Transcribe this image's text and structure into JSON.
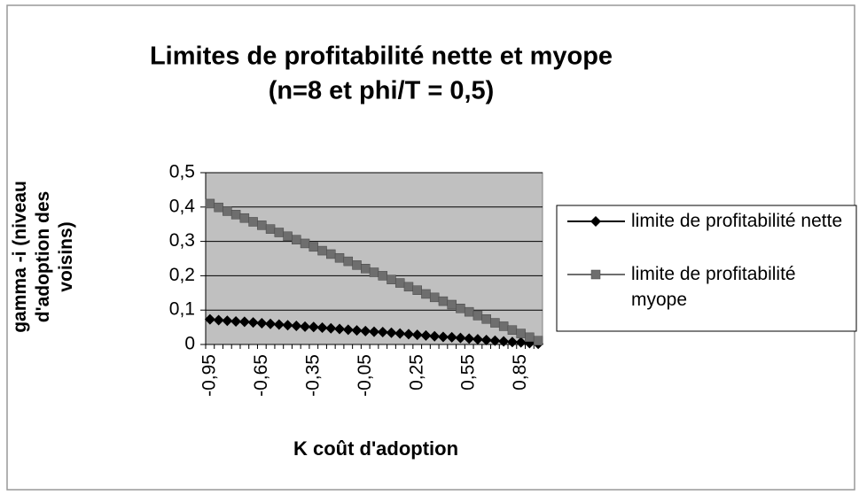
{
  "chart_data": {
    "type": "line",
    "title": "Limites de profitabilité nette et myope",
    "subtitle": "(n=8 et phi/T = 0,5)",
    "xlabel": "K coût d'adoption",
    "ylabel": "gamma -i (niveau d'adoption des voisins)",
    "categories": [
      "-0,95",
      null,
      null,
      null,
      null,
      null,
      "-0,65",
      null,
      null,
      null,
      null,
      null,
      "-0,35",
      null,
      null,
      null,
      null,
      null,
      "-0,05",
      null,
      null,
      null,
      null,
      null,
      "0,25",
      null,
      null,
      null,
      null,
      null,
      "0,55",
      null,
      null,
      null,
      null,
      null,
      "0,85",
      null,
      null
    ],
    "series": [
      {
        "name": "limite de profitabilité nette",
        "color": "#000000",
        "marker": "diamond",
        "values": [
          0.073,
          0.071,
          0.069,
          0.067,
          0.066,
          0.064,
          0.062,
          0.06,
          0.058,
          0.056,
          0.054,
          0.052,
          0.051,
          0.049,
          0.047,
          0.045,
          0.043,
          0.041,
          0.039,
          0.037,
          0.036,
          0.034,
          0.032,
          0.03,
          0.028,
          0.026,
          0.024,
          0.022,
          0.021,
          0.019,
          0.017,
          0.015,
          0.013,
          0.011,
          0.009,
          0.007,
          0.006,
          0.004,
          0.002
        ]
      },
      {
        "name": "limite de profitabilité myope",
        "color": "#6e6e6e",
        "marker": "square",
        "values": [
          0.41,
          0.399,
          0.388,
          0.378,
          0.368,
          0.357,
          0.347,
          0.336,
          0.326,
          0.315,
          0.305,
          0.294,
          0.284,
          0.273,
          0.263,
          0.252,
          0.242,
          0.231,
          0.221,
          0.21,
          0.2,
          0.189,
          0.179,
          0.168,
          0.158,
          0.147,
          0.137,
          0.126,
          0.116,
          0.105,
          0.095,
          0.084,
          0.074,
          0.063,
          0.053,
          0.042,
          0.032,
          0.021,
          0.011
        ]
      }
    ],
    "ylim": [
      0,
      0.5
    ],
    "yticks": [
      0,
      {
        "value": 0.1,
        "label": "0,1"
      },
      {
        "value": 0.2,
        "label": "0,2"
      },
      {
        "value": 0.3,
        "label": "0,3"
      },
      {
        "value": 0.4,
        "label": "0,4"
      },
      {
        "value": 0.5,
        "label": "0,5"
      }
    ],
    "grid": true,
    "plot_background": "#c0c0c0",
    "legend": "right"
  }
}
